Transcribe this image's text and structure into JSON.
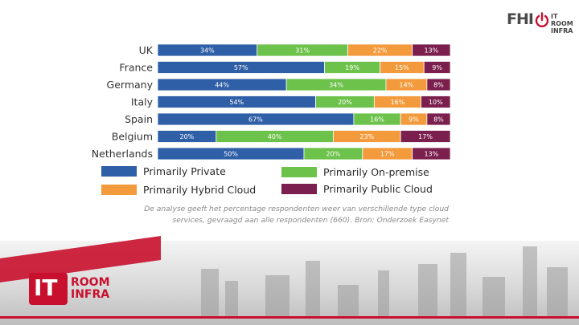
{
  "chart_data": {
    "type": "bar",
    "stacked": true,
    "orientation": "horizontal",
    "categories": [
      "UK",
      "France",
      "Germany",
      "Italy",
      "Spain",
      "Belgium",
      "Netherlands"
    ],
    "series": [
      {
        "name": "Primarily Private",
        "color": "#2f5fa6",
        "values": [
          34,
          57,
          44,
          54,
          67,
          20,
          50
        ]
      },
      {
        "name": "Primarily On-premise",
        "color": "#6cc24a",
        "values": [
          31,
          19,
          34,
          20,
          16,
          40,
          20
        ]
      },
      {
        "name": "Primarily Hybrid Cloud",
        "color": "#f39a3c",
        "values": [
          22,
          15,
          14,
          16,
          9,
          23,
          17
        ]
      },
      {
        "name": "Primarily Public Cloud",
        "color": "#7a1f4e",
        "values": [
          13,
          9,
          8,
          10,
          8,
          17,
          13
        ]
      }
    ],
    "value_suffix": "%",
    "xlim": [
      0,
      100
    ],
    "legend_position": "bottom",
    "grid": false
  },
  "caption": {
    "line1": "De analyse geeft het percentage respondenten weer van verschillende type cloud",
    "line2": "services, gevraagd aan alle respondenten (660). Bron: Onderzoek Easynet"
  },
  "logo": {
    "left": "FHI",
    "line1": "IT ROOM",
    "line2": "INFRA"
  },
  "banner": {
    "badge": "IT",
    "line1": "ROOM",
    "line2": "INFRA"
  },
  "colors": {
    "accent_red": "#c8102e"
  }
}
